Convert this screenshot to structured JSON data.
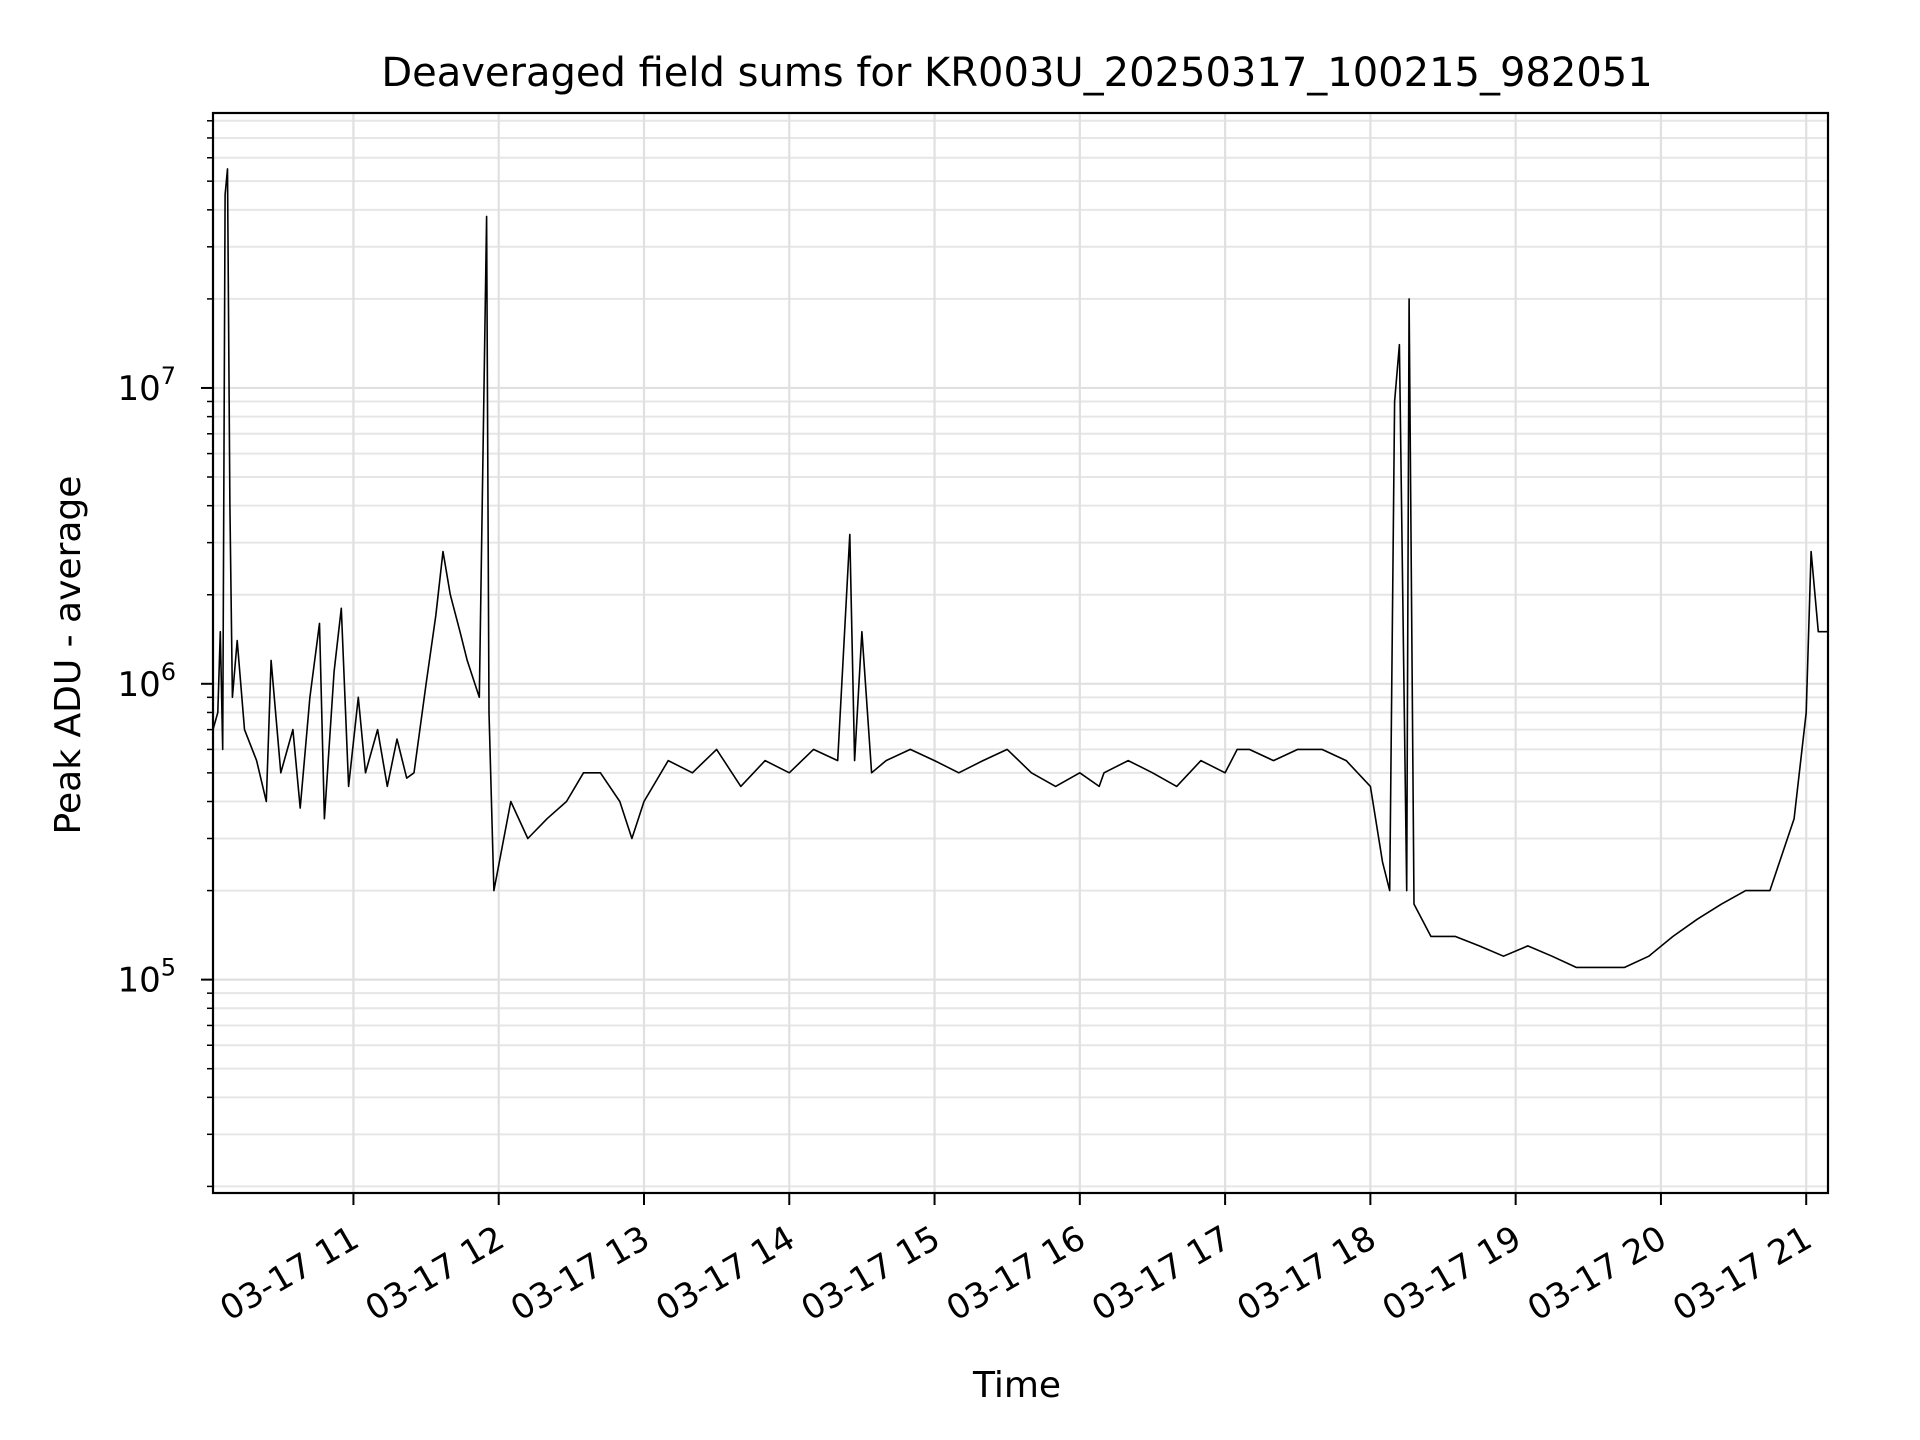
{
  "chart_data": {
    "type": "line",
    "title": "Deaveraged field sums for KR003U_20250317_100215_982051",
    "xlabel": "Time",
    "ylabel": "Peak ADU - average",
    "y_scale": "log",
    "ylim": [
      19000,
      85000000
    ],
    "xlim": [
      "03-17 10:02",
      "03-17 21:09"
    ],
    "grid": true,
    "line_color": "#000000",
    "x_ticks": [
      "03-17 11",
      "03-17 12",
      "03-17 13",
      "03-17 14",
      "03-17 15",
      "03-17 16",
      "03-17 17",
      "03-17 18",
      "03-17 19",
      "03-17 20",
      "03-17 21"
    ],
    "y_ticks": [
      {
        "value": 100000,
        "base": "10",
        "exp": "5"
      },
      {
        "value": 1000000,
        "base": "10",
        "exp": "6"
      },
      {
        "value": 10000000,
        "base": "10",
        "exp": "7"
      }
    ],
    "series": [
      {
        "x": [
          "03-17 10:02",
          "03-17 10:04",
          "03-17 10:05",
          "03-17 10:06",
          "03-17 10:07",
          "03-17 10:08",
          "03-17 10:09",
          "03-17 10:10",
          "03-17 10:12",
          "03-17 10:15",
          "03-17 10:20",
          "03-17 10:24",
          "03-17 10:26",
          "03-17 10:30",
          "03-17 10:35",
          "03-17 10:38",
          "03-17 10:42",
          "03-17 10:46",
          "03-17 10:48",
          "03-17 10:52",
          "03-17 10:55",
          "03-17 10:58",
          "03-17 11:02",
          "03-17 11:05",
          "03-17 11:10",
          "03-17 11:14",
          "03-17 11:18",
          "03-17 11:22",
          "03-17 11:25",
          "03-17 11:30",
          "03-17 11:34",
          "03-17 11:37",
          "03-17 11:40",
          "03-17 11:44",
          "03-17 11:47",
          "03-17 11:52",
          "03-17 11:55",
          "03-17 11:56",
          "03-17 11:58",
          "03-17 12:05",
          "03-17 12:12",
          "03-17 12:20",
          "03-17 12:28",
          "03-17 12:35",
          "03-17 12:42",
          "03-17 12:50",
          "03-17 12:55",
          "03-17 13:00",
          "03-17 13:10",
          "03-17 13:20",
          "03-17 13:30",
          "03-17 13:40",
          "03-17 13:50",
          "03-17 14:00",
          "03-17 14:10",
          "03-17 14:20",
          "03-17 14:25",
          "03-17 14:27",
          "03-17 14:30",
          "03-17 14:34",
          "03-17 14:40",
          "03-17 14:50",
          "03-17 15:00",
          "03-17 15:10",
          "03-17 15:20",
          "03-17 15:30",
          "03-17 15:40",
          "03-17 15:50",
          "03-17 16:00",
          "03-17 16:08",
          "03-17 16:10",
          "03-17 16:20",
          "03-17 16:30",
          "03-17 16:40",
          "03-17 16:50",
          "03-17 17:00",
          "03-17 17:05",
          "03-17 17:10",
          "03-17 17:20",
          "03-17 17:30",
          "03-17 17:40",
          "03-17 17:50",
          "03-17 18:00",
          "03-17 18:05",
          "03-17 18:08",
          "03-17 18:10",
          "03-17 18:12",
          "03-17 18:15",
          "03-17 18:16",
          "03-17 18:18",
          "03-17 18:25",
          "03-17 18:35",
          "03-17 18:45",
          "03-17 18:55",
          "03-17 19:05",
          "03-17 19:15",
          "03-17 19:25",
          "03-17 19:35",
          "03-17 19:45",
          "03-17 19:55",
          "03-17 20:05",
          "03-17 20:15",
          "03-17 20:25",
          "03-17 20:35",
          "03-17 20:45",
          "03-17 20:55",
          "03-17 21:00",
          "03-17 21:02",
          "03-17 21:05",
          "03-17 21:09"
        ],
        "values": [
          700000,
          800000,
          1500000,
          600000,
          45000000,
          55000000,
          4000000,
          900000,
          1400000,
          700000,
          550000,
          400000,
          1200000,
          500000,
          700000,
          380000,
          900000,
          1600000,
          350000,
          1100000,
          1800000,
          450000,
          900000,
          500000,
          700000,
          450000,
          650000,
          480000,
          500000,
          1000000,
          1700000,
          2800000,
          2000000,
          1500000,
          1200000,
          900000,
          38000000,
          800000,
          200000,
          400000,
          300000,
          350000,
          400000,
          500000,
          500000,
          400000,
          300000,
          400000,
          550000,
          500000,
          600000,
          450000,
          550000,
          500000,
          600000,
          550000,
          3200000,
          550000,
          1500000,
          500000,
          550000,
          600000,
          550000,
          500000,
          550000,
          600000,
          500000,
          450000,
          500000,
          450000,
          500000,
          550000,
          500000,
          450000,
          550000,
          500000,
          600000,
          600000,
          550000,
          600000,
          600000,
          550000,
          450000,
          250000,
          200000,
          9000000,
          14000000,
          200000,
          20000000,
          180000,
          140000,
          140000,
          130000,
          120000,
          130000,
          120000,
          110000,
          110000,
          110000,
          120000,
          140000,
          160000,
          180000,
          200000,
          200000,
          350000,
          800000,
          2800000,
          1500000,
          1500000
        ]
      }
    ]
  }
}
